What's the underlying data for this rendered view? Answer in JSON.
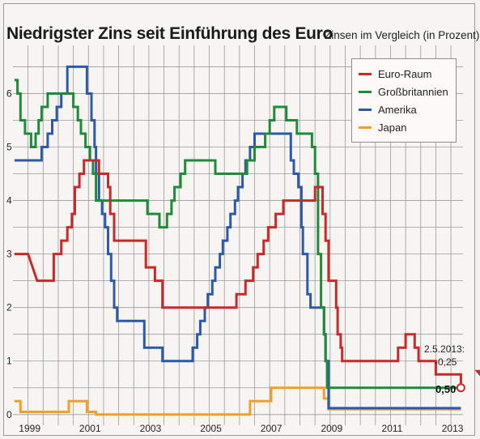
{
  "header": {
    "title": "Niedrigster Zins seit Einführung des Euro",
    "subtitle": "Zinsen im Vergleich (in Prozent)"
  },
  "annotation": {
    "date": "2.5.2013:",
    "change": "-0,25",
    "value": "0,50"
  },
  "colors": {
    "Euro-Raum": "#c62a2a",
    "Großbritannien": "#1f8a3a",
    "Amerika": "#2d5aa6",
    "Japan": "#f0a02a"
  },
  "chart_data": {
    "type": "line",
    "title": "Niedrigster Zins seit Einführung des Euro",
    "subtitle": "Zinsen im Vergleich (in Prozent)",
    "xlabel": "",
    "ylabel": "",
    "xlim": [
      1998.5,
      2013.4
    ],
    "ylim": [
      -0.2,
      6.9
    ],
    "x_ticks": [
      "1999",
      "2001",
      "2003",
      "2005",
      "2007",
      "2009",
      "2011",
      "2013"
    ],
    "y_ticks": [
      "0",
      "1",
      "2",
      "3",
      "4",
      "5",
      "6"
    ],
    "grid": true,
    "legend": "top-right",
    "series": [
      {
        "name": "Euro-Raum",
        "points": [
          [
            1998.55,
            3.0
          ],
          [
            1999.0,
            3.0
          ],
          [
            1999.3,
            2.5
          ],
          [
            1999.85,
            2.5
          ],
          [
            1999.85,
            3.0
          ],
          [
            2000.1,
            3.0
          ],
          [
            2000.1,
            3.25
          ],
          [
            2000.3,
            3.25
          ],
          [
            2000.3,
            3.5
          ],
          [
            2000.45,
            3.5
          ],
          [
            2000.45,
            3.75
          ],
          [
            2000.55,
            3.75
          ],
          [
            2000.55,
            4.25
          ],
          [
            2000.7,
            4.25
          ],
          [
            2000.7,
            4.5
          ],
          [
            2000.85,
            4.5
          ],
          [
            2000.85,
            4.75
          ],
          [
            2001.35,
            4.75
          ],
          [
            2001.35,
            4.5
          ],
          [
            2001.65,
            4.5
          ],
          [
            2001.65,
            4.25
          ],
          [
            2001.72,
            4.25
          ],
          [
            2001.72,
            3.75
          ],
          [
            2001.85,
            3.75
          ],
          [
            2001.85,
            3.25
          ],
          [
            2002.9,
            3.25
          ],
          [
            2002.9,
            2.75
          ],
          [
            2003.2,
            2.75
          ],
          [
            2003.2,
            2.5
          ],
          [
            2003.45,
            2.5
          ],
          [
            2003.45,
            2.0
          ],
          [
            2005.9,
            2.0
          ],
          [
            2005.9,
            2.25
          ],
          [
            2006.2,
            2.25
          ],
          [
            2006.2,
            2.5
          ],
          [
            2006.45,
            2.5
          ],
          [
            2006.45,
            2.75
          ],
          [
            2006.6,
            2.75
          ],
          [
            2006.6,
            3.0
          ],
          [
            2006.8,
            3.0
          ],
          [
            2006.8,
            3.25
          ],
          [
            2006.95,
            3.25
          ],
          [
            2006.95,
            3.5
          ],
          [
            2007.2,
            3.5
          ],
          [
            2007.2,
            3.75
          ],
          [
            2007.45,
            3.75
          ],
          [
            2007.45,
            4.0
          ],
          [
            2008.5,
            4.0
          ],
          [
            2008.5,
            4.25
          ],
          [
            2008.75,
            4.25
          ],
          [
            2008.75,
            3.75
          ],
          [
            2008.85,
            3.75
          ],
          [
            2008.85,
            3.25
          ],
          [
            2008.95,
            3.25
          ],
          [
            2008.95,
            2.5
          ],
          [
            2009.2,
            2.5
          ],
          [
            2009.2,
            2.0
          ],
          [
            2009.25,
            2.0
          ],
          [
            2009.25,
            1.5
          ],
          [
            2009.35,
            1.5
          ],
          [
            2009.35,
            1.25
          ],
          [
            2009.4,
            1.25
          ],
          [
            2009.4,
            1.0
          ],
          [
            2011.25,
            1.0
          ],
          [
            2011.25,
            1.25
          ],
          [
            2011.5,
            1.25
          ],
          [
            2011.5,
            1.5
          ],
          [
            2011.8,
            1.5
          ],
          [
            2011.8,
            1.25
          ],
          [
            2011.93,
            1.25
          ],
          [
            2011.93,
            1.0
          ],
          [
            2012.5,
            1.0
          ],
          [
            2012.5,
            0.75
          ],
          [
            2013.33,
            0.75
          ],
          [
            2013.33,
            0.5
          ]
        ]
      },
      {
        "name": "Großbritannien",
        "points": [
          [
            1998.55,
            6.25
          ],
          [
            1998.65,
            6.25
          ],
          [
            1998.65,
            6.0
          ],
          [
            1998.75,
            6.0
          ],
          [
            1998.75,
            5.5
          ],
          [
            1998.9,
            5.5
          ],
          [
            1998.9,
            5.25
          ],
          [
            1999.1,
            5.25
          ],
          [
            1999.1,
            5.0
          ],
          [
            1999.25,
            5.0
          ],
          [
            1999.25,
            5.25
          ],
          [
            1999.35,
            5.25
          ],
          [
            1999.35,
            5.5
          ],
          [
            1999.45,
            5.5
          ],
          [
            1999.45,
            5.75
          ],
          [
            1999.65,
            5.75
          ],
          [
            1999.65,
            6.0
          ],
          [
            2000.5,
            6.0
          ],
          [
            2000.5,
            5.75
          ],
          [
            2000.65,
            5.75
          ],
          [
            2000.65,
            5.5
          ],
          [
            2000.75,
            5.5
          ],
          [
            2000.75,
            5.25
          ],
          [
            2000.9,
            5.25
          ],
          [
            2000.9,
            5.0
          ],
          [
            2001.05,
            5.0
          ],
          [
            2001.05,
            4.75
          ],
          [
            2001.15,
            4.75
          ],
          [
            2001.15,
            4.5
          ],
          [
            2001.25,
            4.5
          ],
          [
            2001.25,
            4.0
          ],
          [
            2002.95,
            4.0
          ],
          [
            2002.95,
            3.75
          ],
          [
            2003.35,
            3.75
          ],
          [
            2003.35,
            3.5
          ],
          [
            2003.6,
            3.5
          ],
          [
            2003.6,
            3.75
          ],
          [
            2003.75,
            3.75
          ],
          [
            2003.75,
            4.0
          ],
          [
            2003.85,
            4.0
          ],
          [
            2003.85,
            4.25
          ],
          [
            2004.05,
            4.25
          ],
          [
            2004.05,
            4.5
          ],
          [
            2004.2,
            4.5
          ],
          [
            2004.2,
            4.75
          ],
          [
            2005.2,
            4.75
          ],
          [
            2005.2,
            4.5
          ],
          [
            2006.25,
            4.5
          ],
          [
            2006.25,
            4.75
          ],
          [
            2006.5,
            4.75
          ],
          [
            2006.5,
            5.0
          ],
          [
            2006.85,
            5.0
          ],
          [
            2006.85,
            5.25
          ],
          [
            2007.0,
            5.25
          ],
          [
            2007.0,
            5.5
          ],
          [
            2007.15,
            5.5
          ],
          [
            2007.15,
            5.75
          ],
          [
            2007.55,
            5.75
          ],
          [
            2007.55,
            5.5
          ],
          [
            2007.9,
            5.5
          ],
          [
            2007.9,
            5.25
          ],
          [
            2008.4,
            5.25
          ],
          [
            2008.4,
            5.0
          ],
          [
            2008.5,
            5.0
          ],
          [
            2008.5,
            4.5
          ],
          [
            2008.6,
            4.5
          ],
          [
            2008.6,
            3.0
          ],
          [
            2008.7,
            3.0
          ],
          [
            2008.7,
            2.0
          ],
          [
            2008.8,
            2.0
          ],
          [
            2008.8,
            1.5
          ],
          [
            2008.85,
            1.5
          ],
          [
            2008.85,
            1.0
          ],
          [
            2008.9,
            1.0
          ],
          [
            2008.9,
            0.5
          ],
          [
            2013.33,
            0.5
          ]
        ]
      },
      {
        "name": "Amerika",
        "points": [
          [
            1998.55,
            4.75
          ],
          [
            1999.45,
            4.75
          ],
          [
            1999.45,
            5.0
          ],
          [
            1999.65,
            5.0
          ],
          [
            1999.65,
            5.25
          ],
          [
            1999.8,
            5.25
          ],
          [
            1999.8,
            5.5
          ],
          [
            1999.95,
            5.5
          ],
          [
            1999.95,
            5.75
          ],
          [
            2000.1,
            5.75
          ],
          [
            2000.1,
            6.0
          ],
          [
            2000.3,
            6.0
          ],
          [
            2000.3,
            6.5
          ],
          [
            2000.95,
            6.5
          ],
          [
            2000.95,
            6.0
          ],
          [
            2001.1,
            6.0
          ],
          [
            2001.1,
            5.5
          ],
          [
            2001.2,
            5.5
          ],
          [
            2001.2,
            5.0
          ],
          [
            2001.25,
            5.0
          ],
          [
            2001.25,
            4.5
          ],
          [
            2001.35,
            4.5
          ],
          [
            2001.35,
            4.0
          ],
          [
            2001.45,
            4.0
          ],
          [
            2001.45,
            3.75
          ],
          [
            2001.55,
            3.75
          ],
          [
            2001.55,
            3.5
          ],
          [
            2001.65,
            3.5
          ],
          [
            2001.65,
            3.0
          ],
          [
            2001.75,
            3.0
          ],
          [
            2001.75,
            2.5
          ],
          [
            2001.85,
            2.5
          ],
          [
            2001.85,
            2.0
          ],
          [
            2001.95,
            2.0
          ],
          [
            2001.95,
            1.75
          ],
          [
            2002.85,
            1.75
          ],
          [
            2002.85,
            1.25
          ],
          [
            2003.45,
            1.25
          ],
          [
            2003.45,
            1.0
          ],
          [
            2004.45,
            1.0
          ],
          [
            2004.45,
            1.25
          ],
          [
            2004.6,
            1.25
          ],
          [
            2004.6,
            1.5
          ],
          [
            2004.7,
            1.5
          ],
          [
            2004.7,
            1.75
          ],
          [
            2004.85,
            1.75
          ],
          [
            2004.85,
            2.0
          ],
          [
            2004.95,
            2.0
          ],
          [
            2004.95,
            2.25
          ],
          [
            2005.1,
            2.25
          ],
          [
            2005.1,
            2.5
          ],
          [
            2005.2,
            2.5
          ],
          [
            2005.2,
            2.75
          ],
          [
            2005.35,
            2.75
          ],
          [
            2005.35,
            3.0
          ],
          [
            2005.45,
            3.0
          ],
          [
            2005.45,
            3.25
          ],
          [
            2005.6,
            3.25
          ],
          [
            2005.6,
            3.5
          ],
          [
            2005.7,
            3.5
          ],
          [
            2005.7,
            3.75
          ],
          [
            2005.85,
            3.75
          ],
          [
            2005.85,
            4.0
          ],
          [
            2005.95,
            4.0
          ],
          [
            2005.95,
            4.25
          ],
          [
            2006.1,
            4.25
          ],
          [
            2006.1,
            4.5
          ],
          [
            2006.2,
            4.5
          ],
          [
            2006.2,
            4.75
          ],
          [
            2006.35,
            4.75
          ],
          [
            2006.35,
            5.0
          ],
          [
            2006.5,
            5.0
          ],
          [
            2006.5,
            5.25
          ],
          [
            2007.7,
            5.25
          ],
          [
            2007.7,
            4.75
          ],
          [
            2007.8,
            4.75
          ],
          [
            2007.8,
            4.5
          ],
          [
            2007.95,
            4.5
          ],
          [
            2007.95,
            4.25
          ],
          [
            2008.05,
            4.25
          ],
          [
            2008.05,
            3.5
          ],
          [
            2008.1,
            3.5
          ],
          [
            2008.1,
            3.0
          ],
          [
            2008.25,
            3.0
          ],
          [
            2008.25,
            2.25
          ],
          [
            2008.35,
            2.25
          ],
          [
            2008.35,
            2.0
          ],
          [
            2008.8,
            2.0
          ],
          [
            2008.8,
            1.5
          ],
          [
            2008.85,
            1.5
          ],
          [
            2008.85,
            1.0
          ],
          [
            2008.95,
            1.0
          ],
          [
            2008.95,
            0.12
          ],
          [
            2013.33,
            0.12
          ]
        ]
      },
      {
        "name": "Japan",
        "points": [
          [
            1998.55,
            0.25
          ],
          [
            1998.75,
            0.25
          ],
          [
            1998.75,
            0.05
          ],
          [
            2000.35,
            0.05
          ],
          [
            2000.35,
            0.25
          ],
          [
            2000.95,
            0.25
          ],
          [
            2000.95,
            0.05
          ],
          [
            2001.25,
            0.05
          ],
          [
            2001.25,
            0.0
          ],
          [
            2006.35,
            0.0
          ],
          [
            2006.35,
            0.25
          ],
          [
            2007.05,
            0.25
          ],
          [
            2007.05,
            0.5
          ],
          [
            2008.8,
            0.5
          ],
          [
            2008.8,
            0.3
          ],
          [
            2008.95,
            0.3
          ],
          [
            2008.95,
            0.1
          ],
          [
            2013.33,
            0.1
          ]
        ]
      }
    ]
  }
}
